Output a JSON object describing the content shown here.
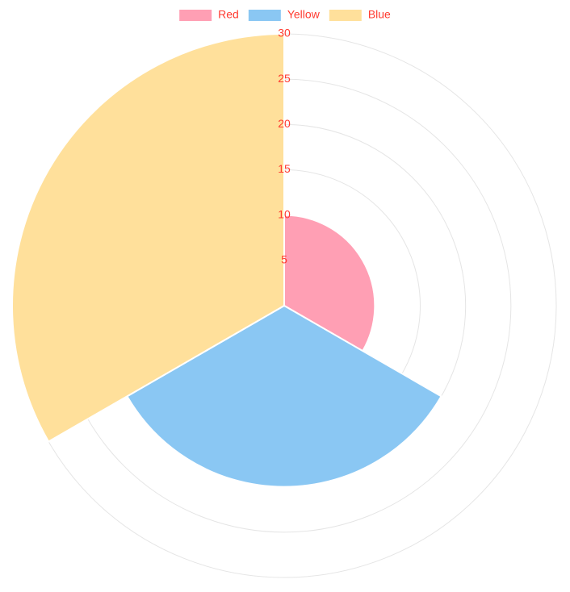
{
  "chart_data": {
    "type": "polarArea",
    "categories": [
      "Red",
      "Yellow",
      "Blue"
    ],
    "values": [
      10,
      20,
      30
    ],
    "colors": [
      "#ff9fb4",
      "#8ac7f3",
      "#ffe09b"
    ],
    "legend": {
      "position": "top",
      "items": [
        "Red",
        "Yellow",
        "Blue"
      ]
    },
    "radial_axis": {
      "min": 0,
      "max": 30,
      "ticks": [
        "5",
        "10",
        "15",
        "20",
        "25",
        "30"
      ],
      "grid": true
    },
    "label_color": "#ff3b30"
  }
}
